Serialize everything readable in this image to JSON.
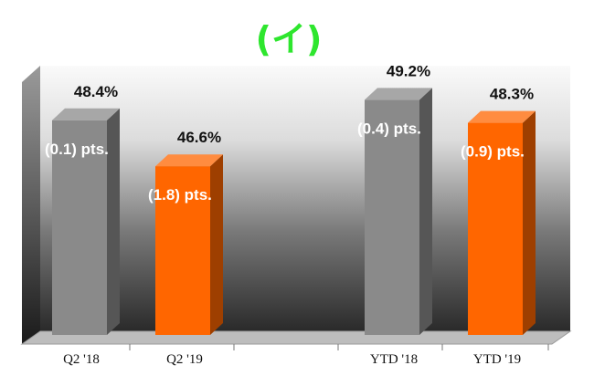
{
  "panel_title": "(イ)",
  "colors": {
    "gray_bar": "#8a8a8a",
    "orange_bar": "#ff6600",
    "title_green": "#2ee62e"
  },
  "chart_data": {
    "type": "bar",
    "title": "",
    "xlabel": "",
    "ylabel": "",
    "grid": false,
    "legend": "none",
    "ylim": [
      40,
      50
    ],
    "categories": [
      "Q2 '18",
      "Q2 '19",
      "YTD '18",
      "YTD '19"
    ],
    "values": [
      48.4,
      46.6,
      49.2,
      48.3
    ],
    "value_labels": [
      "48.4%",
      "46.6%",
      "49.2%",
      "48.3%"
    ],
    "change_labels": [
      "(0.1) pts.",
      "(1.8) pts.",
      "(0.4) pts.",
      "(0.9) pts."
    ],
    "bar_colors": [
      "gray",
      "orange",
      "gray",
      "orange"
    ]
  }
}
